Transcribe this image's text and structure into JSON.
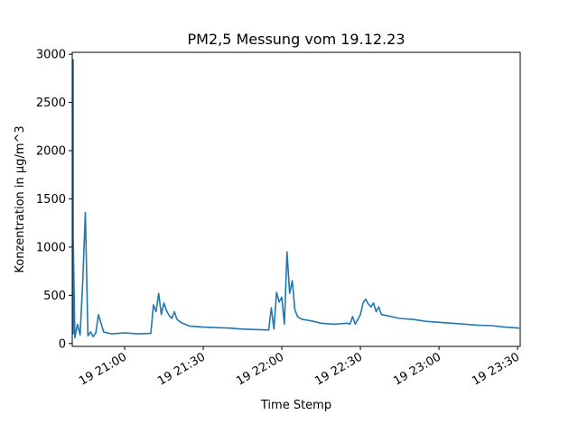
{
  "chart_data": {
    "type": "line",
    "title": "PM2,5 Messung vom 19.12.23",
    "xlabel": "Time Stemp",
    "ylabel": "Konzentration in µg/m^3",
    "xlim": [
      "2023-12-19 20:40",
      "2023-12-19 23:31"
    ],
    "ylim": [
      -30,
      3020
    ],
    "x_ticks": [
      {
        "t": "2023-12-19 21:00",
        "label": "19 21:00"
      },
      {
        "t": "2023-12-19 21:30",
        "label": "19 21:30"
      },
      {
        "t": "2023-12-19 22:00",
        "label": "19 22:00"
      },
      {
        "t": "2023-12-19 22:30",
        "label": "19 22:30"
      },
      {
        "t": "2023-12-19 23:00",
        "label": "19 23:00"
      },
      {
        "t": "2023-12-19 23:30",
        "label": "19 23:30"
      }
    ],
    "y_ticks": [
      0,
      500,
      1000,
      1500,
      2000,
      2500,
      3000
    ],
    "grid": false,
    "color": "#1f77b4",
    "series": [
      {
        "x": [
          "20:36",
          "20:37",
          "20:38",
          "20:39",
          "20:40",
          "20:41",
          "20:42",
          "20:43",
          "20:44",
          "20:45",
          "20:46",
          "20:47",
          "20:48",
          "20:49",
          "20:50",
          "20:52",
          "20:55",
          "21:00",
          "21:05",
          "21:10",
          "21:11",
          "21:12",
          "21:13",
          "21:14",
          "21:15",
          "21:16",
          "21:17",
          "21:18",
          "21:19",
          "21:20",
          "21:22",
          "21:25",
          "21:30",
          "21:35",
          "21:40",
          "21:45",
          "21:50",
          "21:55",
          "21:56",
          "21:57",
          "21:58",
          "21:59",
          "22:00",
          "22:01",
          "22:02",
          "22:03",
          "22:04",
          "22:05",
          "22:06",
          "22:07",
          "22:08",
          "22:10",
          "22:12",
          "22:15",
          "22:20",
          "22:25",
          "22:26",
          "22:27",
          "22:28",
          "22:29",
          "22:30",
          "22:31",
          "22:32",
          "22:33",
          "22:34",
          "22:35",
          "22:36",
          "22:37",
          "22:38",
          "22:40",
          "22:45",
          "22:50",
          "22:55",
          "23:00",
          "23:05",
          "23:10",
          "23:15",
          "23:20",
          "23:25",
          "23:31"
        ],
        "y": [
          2950,
          400,
          2800,
          100,
          1130,
          60,
          200,
          90,
          640,
          1360,
          80,
          120,
          70,
          110,
          300,
          120,
          100,
          110,
          100,
          105,
          400,
          330,
          520,
          300,
          420,
          340,
          290,
          260,
          330,
          250,
          210,
          180,
          170,
          165,
          160,
          150,
          145,
          140,
          370,
          150,
          530,
          430,
          480,
          200,
          950,
          520,
          650,
          350,
          280,
          260,
          250,
          240,
          230,
          210,
          200,
          210,
          200,
          280,
          200,
          250,
          300,
          420,
          460,
          410,
          380,
          420,
          330,
          380,
          300,
          290,
          260,
          250,
          230,
          220,
          210,
          200,
          190,
          185,
          170,
          160
        ]
      }
    ]
  }
}
